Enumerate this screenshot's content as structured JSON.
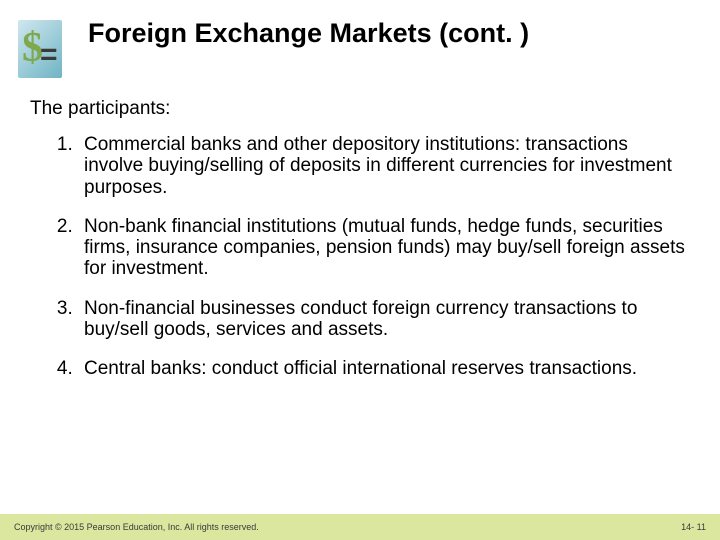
{
  "title": "Foreign Exchange Markets (cont. )",
  "lead": "The participants:",
  "items": [
    "Commercial banks and other depository institutions: transactions involve buying/selling of deposits in different currencies for investment purposes.",
    "Non-bank financial institutions (mutual funds, hedge funds, securities firms, insurance companies, pension funds) may buy/sell foreign assets for investment.",
    "Non-financial businesses conduct foreign currency transactions to buy/sell goods, services and assets.",
    "Central banks: conduct official international reserves transactions."
  ],
  "footer": {
    "copyright": "Copyright © 2015 Pearson Education, Inc. All rights reserved.",
    "page": "14- 11"
  },
  "colors": {
    "footer_bg": "#dbe79f",
    "logo_gradient_start": "#cfe7ef",
    "logo_gradient_end": "#6fb4c4",
    "dollar": "#7fa84f"
  }
}
